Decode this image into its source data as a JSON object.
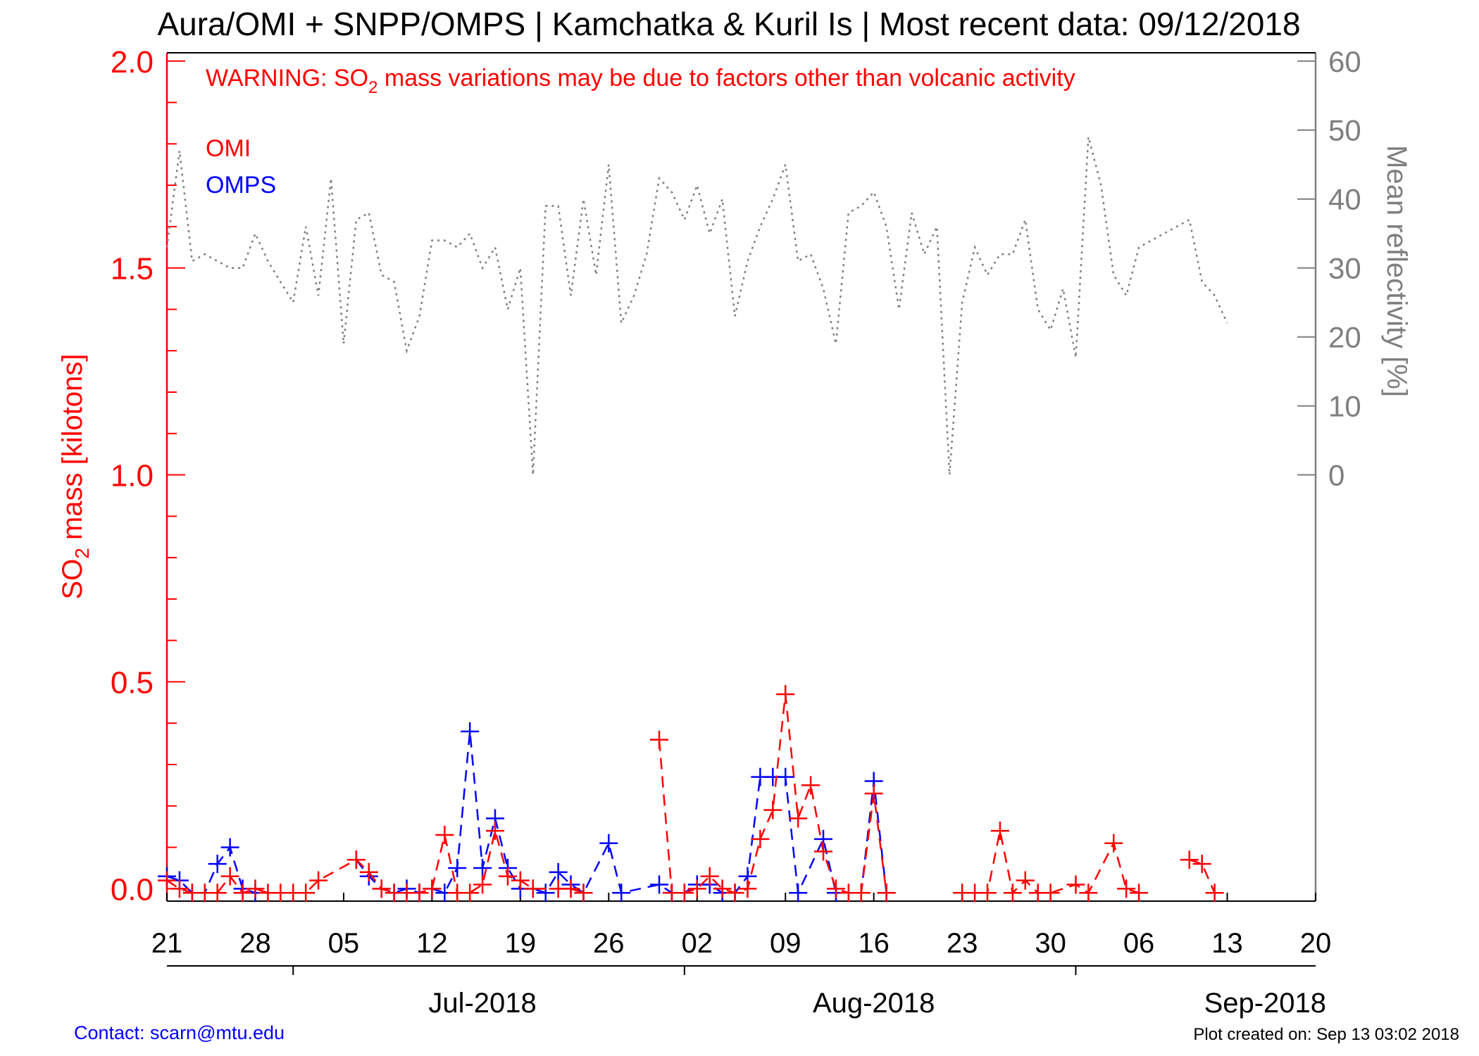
{
  "title": "Aura/OMI + SNPP/OMPS | Kamchatka & Kuril Is | Most recent data: 09/12/2018",
  "warning": {
    "prefix": "WARNING: SO",
    "subscript": "2",
    "suffix": " mass variations may be due to factors other than volcanic activity"
  },
  "left_axis_label": {
    "prefix": "SO",
    "subscript": "2",
    "suffix": " mass [kilotons]"
  },
  "right_axis_label": "Mean reflectivity [%]",
  "footer": {
    "contact": "Contact: scarn@mtu.edu",
    "created": "Plot created on: Sep 13 03:02 2018"
  },
  "colors": {
    "omi": "#ff0000",
    "omps": "#0000ff",
    "reflectivity": "#7f7f7f",
    "axis_left": "#ff0000",
    "axis_right": "#7f7f7f"
  },
  "chart_data": {
    "type": "line",
    "x_axis": {
      "range": [
        "2018-06-21",
        "2018-09-20"
      ],
      "tick_labels": [
        "21",
        "28",
        "05",
        "12",
        "19",
        "26",
        "02",
        "09",
        "16",
        "23",
        "30",
        "06",
        "13",
        "20"
      ],
      "month_labels": [
        "Jul-2018",
        "Aug-2018",
        "Sep-2018"
      ]
    },
    "y_axis": {
      "label": "SO2 mass [kilotons]",
      "range": [
        -0.03,
        2.02
      ],
      "tick_labels": [
        "0.0",
        "0.5",
        "1.0",
        "1.5",
        "2.0"
      ]
    },
    "y2_axis": {
      "label": "Mean reflectivity [%]",
      "range": [
        0,
        60
      ],
      "tick_labels": [
        "0",
        "10",
        "20",
        "30",
        "40",
        "50",
        "60"
      ]
    },
    "legend": [
      "OMI",
      "OMPS"
    ],
    "legend_position": "top-left",
    "series": [
      {
        "name": "OMI",
        "axis": "left",
        "points": [
          [
            "2018-06-21",
            0.02
          ],
          [
            "2018-06-22",
            0.0
          ],
          [
            "2018-06-23",
            -0.01
          ],
          [
            "2018-06-24",
            -0.01
          ],
          [
            "2018-06-25",
            -0.01
          ],
          [
            "2018-06-26",
            0.03
          ],
          [
            "2018-06-27",
            -0.01
          ],
          [
            "2018-06-28",
            0.0
          ],
          [
            "2018-06-29",
            -0.01
          ],
          [
            "2018-06-30",
            -0.01
          ],
          [
            "2018-07-01",
            -0.01
          ],
          [
            "2018-07-02",
            -0.01
          ],
          [
            "2018-07-03",
            0.02
          ],
          [
            "2018-07-06",
            0.07
          ],
          [
            "2018-07-07",
            0.04
          ],
          [
            "2018-07-08",
            0.0
          ],
          [
            "2018-07-09",
            -0.01
          ],
          [
            "2018-07-10",
            -0.01
          ],
          [
            "2018-07-11",
            -0.01
          ],
          [
            "2018-07-12",
            0.0
          ],
          [
            "2018-07-13",
            0.13
          ],
          [
            "2018-07-14",
            -0.01
          ],
          [
            "2018-07-15",
            -0.01
          ],
          [
            "2018-07-16",
            0.01
          ],
          [
            "2018-07-17",
            0.14
          ],
          [
            "2018-07-18",
            0.03
          ],
          [
            "2018-07-19",
            0.02
          ],
          [
            "2018-07-20",
            0.0
          ],
          [
            "2018-07-22",
            0.0
          ],
          [
            "2018-07-23",
            0.0
          ],
          [
            "2018-07-24",
            -0.01
          ],
          [
            "2018-07-30",
            0.36
          ],
          [
            "2018-07-31",
            -0.01
          ],
          [
            "2018-08-01",
            -0.01
          ],
          [
            "2018-08-02",
            0.0
          ],
          [
            "2018-08-03",
            0.03
          ],
          [
            "2018-08-04",
            0.0
          ],
          [
            "2018-08-05",
            -0.01
          ],
          [
            "2018-08-06",
            0.0
          ],
          [
            "2018-08-07",
            0.12
          ],
          [
            "2018-08-08",
            0.19
          ],
          [
            "2018-08-09",
            0.47
          ],
          [
            "2018-08-10",
            0.17
          ],
          [
            "2018-08-11",
            0.25
          ],
          [
            "2018-08-12",
            0.09
          ],
          [
            "2018-08-13",
            0.0
          ],
          [
            "2018-08-14",
            -0.01
          ],
          [
            "2018-08-15",
            -0.01
          ],
          [
            "2018-08-16",
            0.23
          ],
          [
            "2018-08-17",
            -0.01
          ],
          [
            "2018-08-23",
            -0.01
          ],
          [
            "2018-08-24",
            -0.01
          ],
          [
            "2018-08-25",
            -0.01
          ],
          [
            "2018-08-26",
            0.14
          ],
          [
            "2018-08-27",
            -0.01
          ],
          [
            "2018-08-28",
            0.02
          ],
          [
            "2018-08-29",
            -0.01
          ],
          [
            "2018-08-30",
            -0.01
          ],
          [
            "2018-09-01",
            0.01
          ],
          [
            "2018-09-02",
            -0.01
          ],
          [
            "2018-09-04",
            0.11
          ],
          [
            "2018-09-05",
            0.0
          ],
          [
            "2018-09-06",
            -0.01
          ],
          [
            "2018-09-10",
            0.07
          ],
          [
            "2018-09-11",
            0.06
          ],
          [
            "2018-09-12",
            -0.01
          ]
        ]
      },
      {
        "name": "OMPS",
        "axis": "left",
        "points": [
          [
            "2018-06-21",
            0.03
          ],
          [
            "2018-06-22",
            0.02
          ],
          [
            "2018-06-23",
            -0.01
          ],
          [
            "2018-06-24",
            -0.01
          ],
          [
            "2018-06-25",
            0.06
          ],
          [
            "2018-06-26",
            0.1
          ],
          [
            "2018-06-27",
            0.0
          ],
          [
            "2018-06-28",
            -0.01
          ],
          [
            "2018-07-06",
            0.07
          ],
          [
            "2018-07-07",
            0.03
          ],
          [
            "2018-07-08",
            0.0
          ],
          [
            "2018-07-09",
            -0.01
          ],
          [
            "2018-07-10",
            0.0
          ],
          [
            "2018-07-11",
            -0.01
          ],
          [
            "2018-07-12",
            0.0
          ],
          [
            "2018-07-13",
            -0.01
          ],
          [
            "2018-07-14",
            0.05
          ],
          [
            "2018-07-15",
            0.38
          ],
          [
            "2018-07-16",
            0.05
          ],
          [
            "2018-07-17",
            0.17
          ],
          [
            "2018-07-18",
            0.05
          ],
          [
            "2018-07-19",
            0.0
          ],
          [
            "2018-07-20",
            0.0
          ],
          [
            "2018-07-21",
            -0.01
          ],
          [
            "2018-07-22",
            0.04
          ],
          [
            "2018-07-23",
            0.01
          ],
          [
            "2018-07-24",
            -0.01
          ],
          [
            "2018-07-26",
            0.11
          ],
          [
            "2018-07-27",
            -0.01
          ],
          [
            "2018-07-30",
            0.01
          ],
          [
            "2018-07-31",
            -0.01
          ],
          [
            "2018-08-01",
            -0.01
          ],
          [
            "2018-08-02",
            0.01
          ],
          [
            "2018-08-03",
            0.01
          ],
          [
            "2018-08-04",
            -0.01
          ],
          [
            "2018-08-05",
            -0.01
          ],
          [
            "2018-08-06",
            0.03
          ],
          [
            "2018-08-07",
            0.27
          ],
          [
            "2018-08-08",
            0.27
          ],
          [
            "2018-08-09",
            0.27
          ],
          [
            "2018-08-10",
            -0.01
          ],
          [
            "2018-08-12",
            0.12
          ],
          [
            "2018-08-13",
            -0.01
          ],
          [
            "2018-08-15",
            -0.01
          ],
          [
            "2018-08-16",
            0.26
          ],
          [
            "2018-08-17",
            -0.01
          ]
        ]
      },
      {
        "name": "Mean reflectivity",
        "axis": "right",
        "points": [
          [
            "2018-06-21",
            33
          ],
          [
            "2018-06-22",
            47
          ],
          [
            "2018-06-23",
            31
          ],
          [
            "2018-06-24",
            32
          ],
          [
            "2018-06-25",
            31
          ],
          [
            "2018-06-26",
            30
          ],
          [
            "2018-06-27",
            30
          ],
          [
            "2018-06-28",
            35
          ],
          [
            "2018-06-29",
            31
          ],
          [
            "2018-06-30",
            28
          ],
          [
            "2018-07-01",
            25
          ],
          [
            "2018-07-02",
            36
          ],
          [
            "2018-07-03",
            26
          ],
          [
            "2018-07-04",
            43
          ],
          [
            "2018-07-05",
            19
          ],
          [
            "2018-07-06",
            37
          ],
          [
            "2018-07-07",
            38
          ],
          [
            "2018-07-08",
            29
          ],
          [
            "2018-07-09",
            28
          ],
          [
            "2018-07-10",
            18
          ],
          [
            "2018-07-11",
            23
          ],
          [
            "2018-07-12",
            34
          ],
          [
            "2018-07-13",
            34
          ],
          [
            "2018-07-14",
            33
          ],
          [
            "2018-07-15",
            35
          ],
          [
            "2018-07-16",
            30
          ],
          [
            "2018-07-17",
            33
          ],
          [
            "2018-07-18",
            24
          ],
          [
            "2018-07-19",
            30
          ],
          [
            "2018-07-20",
            0
          ],
          [
            "2018-07-21",
            39
          ],
          [
            "2018-07-22",
            39
          ],
          [
            "2018-07-23",
            26
          ],
          [
            "2018-07-24",
            40
          ],
          [
            "2018-07-25",
            29
          ],
          [
            "2018-07-26",
            45
          ],
          [
            "2018-07-27",
            22
          ],
          [
            "2018-07-28",
            26
          ],
          [
            "2018-07-29",
            32
          ],
          [
            "2018-07-30",
            43
          ],
          [
            "2018-07-31",
            41
          ],
          [
            "2018-08-01",
            37
          ],
          [
            "2018-08-02",
            42
          ],
          [
            "2018-08-03",
            35
          ],
          [
            "2018-08-04",
            40
          ],
          [
            "2018-08-05",
            23
          ],
          [
            "2018-08-06",
            31
          ],
          [
            "2018-08-07",
            36
          ],
          [
            "2018-08-08",
            40
          ],
          [
            "2018-08-09",
            45
          ],
          [
            "2018-08-10",
            31
          ],
          [
            "2018-08-11",
            32
          ],
          [
            "2018-08-12",
            27
          ],
          [
            "2018-08-13",
            19
          ],
          [
            "2018-08-14",
            38
          ],
          [
            "2018-08-15",
            39
          ],
          [
            "2018-08-16",
            41
          ],
          [
            "2018-08-17",
            36
          ],
          [
            "2018-08-18",
            24
          ],
          [
            "2018-08-19",
            38
          ],
          [
            "2018-08-20",
            32
          ],
          [
            "2018-08-21",
            36
          ],
          [
            "2018-08-22",
            0
          ],
          [
            "2018-08-23",
            25
          ],
          [
            "2018-08-24",
            33
          ],
          [
            "2018-08-25",
            29
          ],
          [
            "2018-08-26",
            32
          ],
          [
            "2018-08-27",
            32
          ],
          [
            "2018-08-28",
            37
          ],
          [
            "2018-08-29",
            24
          ],
          [
            "2018-08-30",
            21
          ],
          [
            "2018-08-31",
            27
          ],
          [
            "2018-09-01",
            17
          ],
          [
            "2018-09-02",
            49
          ],
          [
            "2018-09-03",
            42
          ],
          [
            "2018-09-04",
            29
          ],
          [
            "2018-09-05",
            26
          ],
          [
            "2018-09-06",
            33
          ],
          [
            "2018-09-07",
            34
          ],
          [
            "2018-09-08",
            35
          ],
          [
            "2018-09-09",
            36
          ],
          [
            "2018-09-10",
            37
          ],
          [
            "2018-09-11",
            28
          ],
          [
            "2018-09-12",
            26
          ],
          [
            "2018-09-13",
            22
          ]
        ]
      }
    ]
  }
}
